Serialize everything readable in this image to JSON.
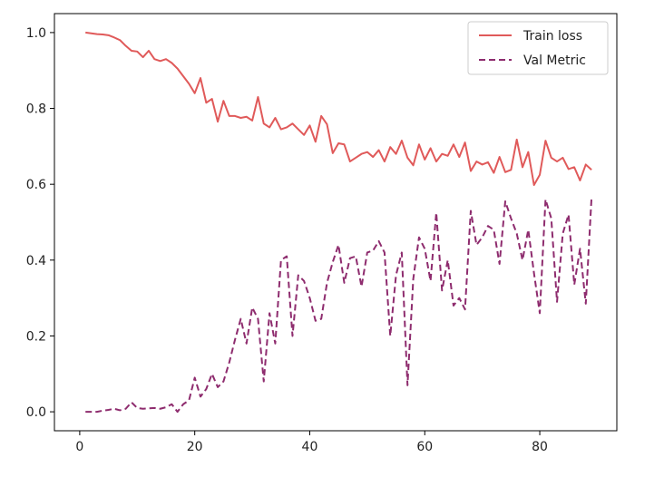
{
  "chart_data": {
    "type": "line",
    "title": "",
    "xlabel": "",
    "ylabel": "",
    "xlim": [
      -4.4,
      93.4
    ],
    "ylim": [
      -0.05,
      1.05
    ],
    "xticks": [
      0,
      20,
      40,
      60,
      80
    ],
    "yticks": [
      0.0,
      0.2,
      0.4,
      0.6,
      0.8,
      1.0
    ],
    "xtick_labels": [
      "0",
      "20",
      "40",
      "60",
      "80"
    ],
    "ytick_labels": [
      "0.0",
      "0.2",
      "0.4",
      "0.6",
      "0.8",
      "1.0"
    ],
    "grid": false,
    "legend_position": "top-right",
    "x": [
      1,
      2,
      3,
      4,
      5,
      6,
      7,
      8,
      9,
      10,
      11,
      12,
      13,
      14,
      15,
      16,
      17,
      18,
      19,
      20,
      21,
      22,
      23,
      24,
      25,
      26,
      27,
      28,
      29,
      30,
      31,
      32,
      33,
      34,
      35,
      36,
      37,
      38,
      39,
      40,
      41,
      42,
      43,
      44,
      45,
      46,
      47,
      48,
      49,
      50,
      51,
      52,
      53,
      54,
      55,
      56,
      57,
      58,
      59,
      60,
      61,
      62,
      63,
      64,
      65,
      66,
      67,
      68,
      69,
      70,
      71,
      72,
      73,
      74,
      75,
      76,
      77,
      78,
      79,
      80,
      81,
      82,
      83,
      84,
      85,
      86,
      87,
      88,
      89
    ],
    "series": [
      {
        "name": "Train loss",
        "color": "#e05a5a",
        "style": "solid",
        "values": [
          1.0,
          0.998,
          0.996,
          0.995,
          0.993,
          0.987,
          0.98,
          0.965,
          0.952,
          0.95,
          0.935,
          0.952,
          0.93,
          0.925,
          0.93,
          0.92,
          0.905,
          0.885,
          0.865,
          0.84,
          0.88,
          0.815,
          0.825,
          0.765,
          0.82,
          0.78,
          0.78,
          0.775,
          0.778,
          0.768,
          0.83,
          0.76,
          0.75,
          0.775,
          0.745,
          0.75,
          0.76,
          0.745,
          0.73,
          0.755,
          0.712,
          0.78,
          0.758,
          0.682,
          0.708,
          0.705,
          0.66,
          0.67,
          0.68,
          0.685,
          0.672,
          0.69,
          0.66,
          0.698,
          0.68,
          0.715,
          0.67,
          0.65,
          0.705,
          0.665,
          0.695,
          0.66,
          0.68,
          0.675,
          0.705,
          0.672,
          0.71,
          0.635,
          0.66,
          0.652,
          0.658,
          0.63,
          0.672,
          0.632,
          0.638,
          0.718,
          0.645,
          0.685,
          0.598,
          0.625,
          0.715,
          0.67,
          0.66,
          0.67,
          0.64,
          0.645,
          0.61,
          0.652,
          0.638
        ]
      },
      {
        "name": "Val Metric",
        "color": "#8e2c6e",
        "style": "dashed",
        "values": [
          0.0,
          0.0,
          0.0,
          0.003,
          0.005,
          0.008,
          0.004,
          0.008,
          0.025,
          0.01,
          0.008,
          0.009,
          0.01,
          0.008,
          0.012,
          0.02,
          0.0,
          0.02,
          0.03,
          0.09,
          0.04,
          0.06,
          0.1,
          0.065,
          0.08,
          0.13,
          0.19,
          0.245,
          0.18,
          0.275,
          0.245,
          0.08,
          0.26,
          0.18,
          0.4,
          0.41,
          0.2,
          0.36,
          0.345,
          0.3,
          0.24,
          0.245,
          0.34,
          0.395,
          0.44,
          0.34,
          0.405,
          0.41,
          0.33,
          0.42,
          0.425,
          0.45,
          0.42,
          0.2,
          0.36,
          0.42,
          0.07,
          0.35,
          0.46,
          0.43,
          0.345,
          0.525,
          0.32,
          0.4,
          0.28,
          0.3,
          0.27,
          0.53,
          0.44,
          0.46,
          0.49,
          0.48,
          0.39,
          0.555,
          0.51,
          0.47,
          0.4,
          0.48,
          0.365,
          0.26,
          0.56,
          0.51,
          0.29,
          0.47,
          0.52,
          0.335,
          0.43,
          0.285,
          0.565
        ]
      }
    ]
  }
}
